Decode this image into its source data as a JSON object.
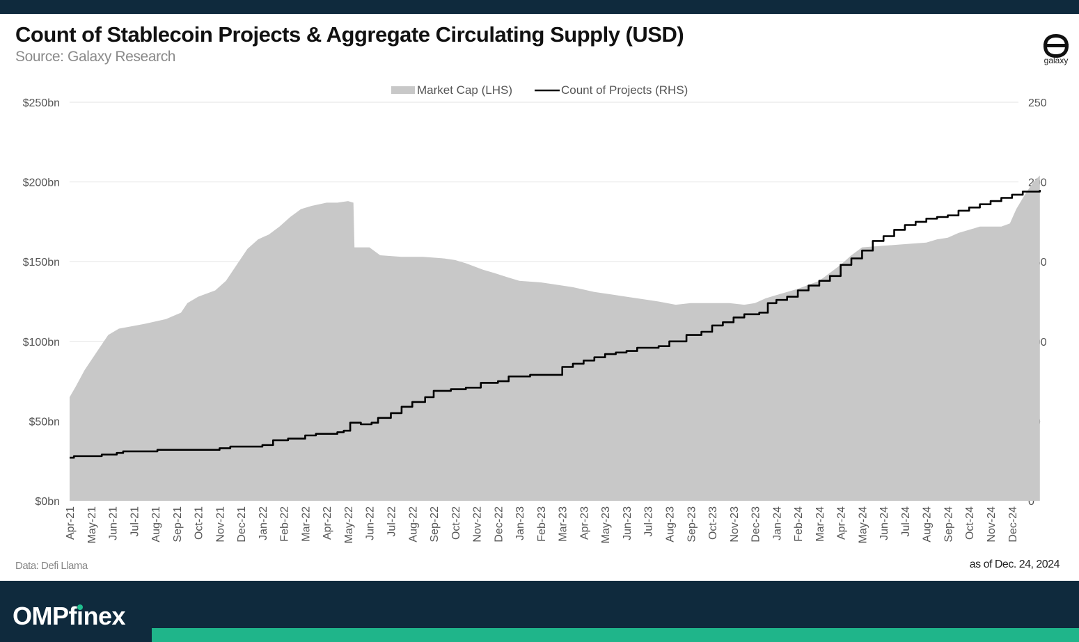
{
  "chart_data": {
    "type": "area",
    "title": "Count of Stablecoin Projects & Aggregate Circulating Supply (USD)",
    "subtitle": "Source: Galaxy Research",
    "legend_position": "top-center",
    "grid": true,
    "y_left": {
      "ticks": [
        "$0bn",
        "$50bn",
        "$100bn",
        "$150bn",
        "$200bn",
        "$250bn"
      ],
      "ylim": [
        0,
        250
      ]
    },
    "y_right": {
      "ticks": [
        "0",
        "50",
        "100",
        "150",
        "200",
        "250"
      ],
      "ylim": [
        0,
        250
      ]
    },
    "x_ticks": [
      "Apr-21",
      "May-21",
      "Jun-21",
      "Jul-21",
      "Aug-21",
      "Sep-21",
      "Oct-21",
      "Nov-21",
      "Dec-21",
      "Jan-22",
      "Feb-22",
      "Mar-22",
      "Apr-22",
      "May-22",
      "Jun-22",
      "Jul-22",
      "Aug-22",
      "Sep-22",
      "Oct-22",
      "Nov-22",
      "Dec-22",
      "Jan-23",
      "Feb-23",
      "Mar-23",
      "Apr-23",
      "May-23",
      "Jun-23",
      "Jul-23",
      "Aug-23",
      "Sep-23",
      "Oct-23",
      "Nov-23",
      "Dec-23",
      "Jan-24",
      "Feb-24",
      "Mar-24",
      "Apr-24",
      "May-24",
      "Jun-24",
      "Jul-24",
      "Aug-24",
      "Sep-24",
      "Oct-24",
      "Nov-24",
      "Dec-24"
    ],
    "series": [
      {
        "name": "Market Cap (LHS)",
        "kind": "area",
        "axis": "left",
        "color": "#c8c8c8",
        "points": [
          [
            0,
            65
          ],
          [
            0.3,
            72
          ],
          [
            0.7,
            82
          ],
          [
            1.2,
            92
          ],
          [
            1.8,
            104
          ],
          [
            2.3,
            108
          ],
          [
            3.5,
            111
          ],
          [
            4.5,
            114
          ],
          [
            5.2,
            118
          ],
          [
            5.5,
            124
          ],
          [
            6.0,
            128
          ],
          [
            6.8,
            132
          ],
          [
            7.3,
            138
          ],
          [
            7.8,
            148
          ],
          [
            8.3,
            158
          ],
          [
            8.8,
            164
          ],
          [
            9.3,
            167
          ],
          [
            9.8,
            172
          ],
          [
            10.3,
            178
          ],
          [
            10.8,
            183
          ],
          [
            11.3,
            185
          ],
          [
            12.0,
            187
          ],
          [
            12.5,
            187
          ],
          [
            13.0,
            188
          ],
          [
            13.25,
            187
          ],
          [
            13.3,
            159
          ],
          [
            14.0,
            159
          ],
          [
            14.5,
            154
          ],
          [
            15.5,
            153
          ],
          [
            16.5,
            153
          ],
          [
            17.5,
            152
          ],
          [
            18.0,
            151
          ],
          [
            18.5,
            149
          ],
          [
            19.3,
            145
          ],
          [
            19.8,
            143
          ],
          [
            20.5,
            140
          ],
          [
            21.0,
            138
          ],
          [
            22.0,
            137
          ],
          [
            22.5,
            136
          ],
          [
            23.5,
            134
          ],
          [
            24.5,
            131
          ],
          [
            25.5,
            129
          ],
          [
            26.5,
            127
          ],
          [
            27.5,
            125
          ],
          [
            28.3,
            123
          ],
          [
            29.0,
            124
          ],
          [
            30.0,
            124
          ],
          [
            30.8,
            124
          ],
          [
            31.5,
            123
          ],
          [
            32.0,
            124
          ],
          [
            32.5,
            127
          ],
          [
            33.0,
            129
          ],
          [
            34.0,
            133
          ],
          [
            35.0,
            138
          ],
          [
            35.5,
            143
          ],
          [
            36.0,
            148
          ],
          [
            36.5,
            154
          ],
          [
            37.0,
            159
          ],
          [
            38.0,
            160
          ],
          [
            39.0,
            161
          ],
          [
            40.0,
            162
          ],
          [
            40.5,
            164
          ],
          [
            41.0,
            165
          ],
          [
            41.5,
            168
          ],
          [
            42.0,
            170
          ],
          [
            42.5,
            172
          ],
          [
            43.5,
            172
          ],
          [
            43.9,
            174
          ],
          [
            44.2,
            183
          ],
          [
            44.6,
            192
          ],
          [
            45.0,
            200
          ],
          [
            45.3,
            204
          ]
        ]
      },
      {
        "name": "Count of Projects (RHS)",
        "kind": "line",
        "axis": "right",
        "color": "#000000",
        "points": [
          [
            0,
            27
          ],
          [
            0.2,
            28
          ],
          [
            1.4,
            28
          ],
          [
            1.5,
            29
          ],
          [
            2.2,
            30
          ],
          [
            2.5,
            31
          ],
          [
            4.0,
            31
          ],
          [
            4.1,
            32
          ],
          [
            6.5,
            32
          ],
          [
            7.0,
            33
          ],
          [
            7.5,
            34
          ],
          [
            8.5,
            34
          ],
          [
            9.0,
            35
          ],
          [
            9.5,
            38
          ],
          [
            10.2,
            39
          ],
          [
            11.0,
            41
          ],
          [
            11.5,
            42
          ],
          [
            12.5,
            43
          ],
          [
            12.8,
            44
          ],
          [
            13.1,
            49
          ],
          [
            13.6,
            48
          ],
          [
            14.1,
            49
          ],
          [
            14.4,
            52
          ],
          [
            15.0,
            55
          ],
          [
            15.5,
            59
          ],
          [
            16.0,
            62
          ],
          [
            16.6,
            65
          ],
          [
            17.0,
            69
          ],
          [
            17.8,
            70
          ],
          [
            18.5,
            71
          ],
          [
            19.2,
            74
          ],
          [
            20.0,
            75
          ],
          [
            20.5,
            78
          ],
          [
            21.5,
            79
          ],
          [
            22.6,
            79
          ],
          [
            23.0,
            84
          ],
          [
            23.5,
            86
          ],
          [
            24.0,
            88
          ],
          [
            24.5,
            90
          ],
          [
            25.0,
            92
          ],
          [
            25.5,
            93
          ],
          [
            26.0,
            94
          ],
          [
            26.5,
            96
          ],
          [
            27.5,
            97
          ],
          [
            28.0,
            100
          ],
          [
            28.8,
            104
          ],
          [
            29.5,
            106
          ],
          [
            30.0,
            110
          ],
          [
            30.5,
            112
          ],
          [
            31.0,
            115
          ],
          [
            31.5,
            117
          ],
          [
            32.2,
            118
          ],
          [
            32.6,
            124
          ],
          [
            33.0,
            126
          ],
          [
            33.5,
            128
          ],
          [
            34.0,
            132
          ],
          [
            34.5,
            135
          ],
          [
            35.0,
            138
          ],
          [
            35.5,
            141
          ],
          [
            36.0,
            148
          ],
          [
            36.5,
            152
          ],
          [
            37.0,
            157
          ],
          [
            37.5,
            163
          ],
          [
            38.0,
            166
          ],
          [
            38.5,
            170
          ],
          [
            39.0,
            173
          ],
          [
            39.5,
            175
          ],
          [
            40.0,
            177
          ],
          [
            40.5,
            178
          ],
          [
            41.0,
            179
          ],
          [
            41.5,
            182
          ],
          [
            42.0,
            184
          ],
          [
            42.5,
            186
          ],
          [
            43.0,
            188
          ],
          [
            43.5,
            190
          ],
          [
            44.0,
            192
          ],
          [
            44.5,
            194
          ],
          [
            45.0,
            194
          ],
          [
            45.3,
            195
          ]
        ]
      }
    ],
    "footer_left": "Data: Defi Llama",
    "footer_right": "as of Dec. 24, 2024"
  },
  "brand": {
    "logo_text": "galaxy",
    "footer_brand_pre": "OMPf",
    "footer_brand_i": "i",
    "footer_brand_post": "nex"
  }
}
